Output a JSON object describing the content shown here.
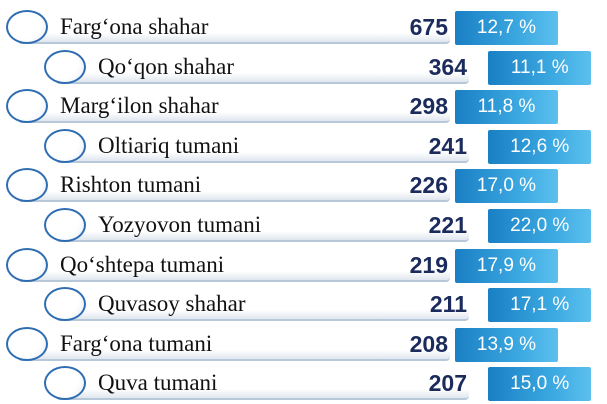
{
  "rows": [
    {
      "name": "Farg‘ona shahar",
      "count": 675,
      "percent": "12,7 %"
    },
    {
      "name": "Qo‘qon shahar",
      "count": 364,
      "percent": "11,1 %"
    },
    {
      "name": "Marg‘ilon shahar",
      "count": 298,
      "percent": "11,8 %"
    },
    {
      "name": "Oltiariq tumani",
      "count": 241,
      "percent": "12,6 %"
    },
    {
      "name": "Rishton tumani",
      "count": 226,
      "percent": "17,0 %"
    },
    {
      "name": "Yozyovon tumani",
      "count": 221,
      "percent": "22,0 %"
    },
    {
      "name": "Qo‘shtepa tumani",
      "count": 219,
      "percent": "17,9 %"
    },
    {
      "name": "Quvasoy shahar",
      "count": 211,
      "percent": "17,1 %"
    },
    {
      "name": "Farg‘ona tumani",
      "count": 208,
      "percent": "13,9 %"
    },
    {
      "name": "Quva tumani",
      "count": 207,
      "percent": "15,0 %"
    }
  ]
}
